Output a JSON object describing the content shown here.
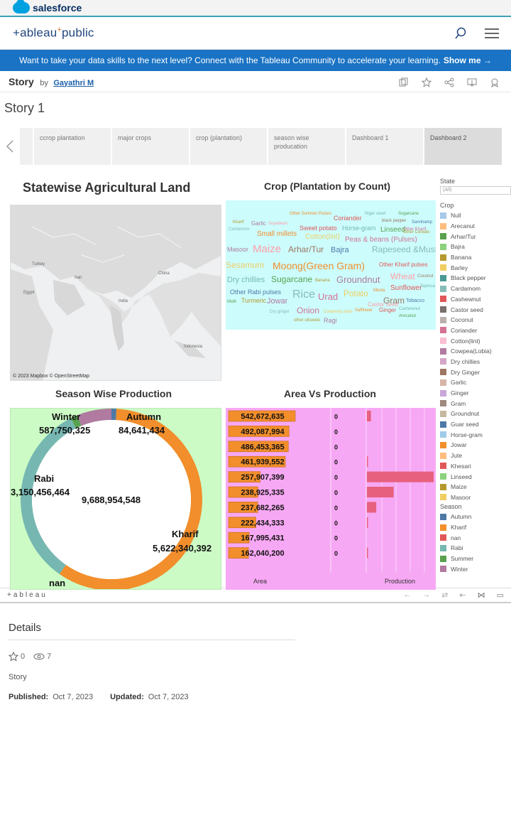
{
  "salesforce": {
    "brand": "salesforce"
  },
  "header": {
    "logo_main": "+ableau",
    "logo_sep": "+",
    "logo_public": "public"
  },
  "banner": {
    "text": "Want to take your data skills to the next level? Connect with the Tableau Community to accelerate your learning.",
    "link": "Show me →"
  },
  "story": {
    "title": "Story",
    "by": "by",
    "author": "Gayathri M",
    "heading": "Story 1"
  },
  "nav": {
    "points": [
      {
        "label": "ccrop plantation"
      },
      {
        "label": "major crops"
      },
      {
        "label": "crop (plantation)"
      },
      {
        "label": "season wise producation"
      },
      {
        "label": "Dashboard 1"
      },
      {
        "label": "Dashboard 2"
      }
    ]
  },
  "dashboard": {
    "map_title": "Statewise Agricultural Land",
    "map_credit": "© 2023 Mapbox © OpenStreetMap",
    "map_labels": [
      "Turkey",
      "Iran",
      "Egypt",
      "China",
      "India",
      "Indonesia"
    ],
    "cloud_title": "Crop (Plantation by Count)",
    "donut_title": "Season Wise Production",
    "bar_title": "Area Vs Production"
  },
  "wordcloud": {
    "words": [
      "Other Summer Pulses",
      "Coriander",
      "Niger seed",
      "Sugarcane",
      "Kharif",
      "Garlic",
      "Soyabean",
      "black pepper",
      "Sannhamp",
      "Cardamom",
      "Other Kharif",
      "Cotton(lint)",
      "Small millets",
      "Sweet potato",
      "Horse-gram",
      "Linseed",
      "Other Cereals",
      "Masoor",
      "Maize",
      "Arhar/Tur",
      "Bajra",
      "Rapeseed &Mustard",
      "Peas & beans (Pulses)",
      "Sesamum",
      "Moong(Green Gram)",
      "Other Kharif pulses",
      "Dry chillies",
      "Sugarcane",
      "Banana",
      "Groundnut",
      "Wheat",
      "Coconut",
      "Other Rabi pulses",
      "Rice",
      "Urad",
      "Potato",
      "Mesta",
      "Sunflower",
      "Tapioca",
      "Moth",
      "Turmeric",
      "Jowar",
      "Castor seed",
      "Gram",
      "Tobacco",
      "Dry ginger",
      "Onion",
      "Cowpea(Lobia)",
      "Safflower",
      "Ginger",
      "Cashewnut",
      "Arecanut",
      "other oilseeds",
      "Ragi"
    ]
  },
  "chart_data": [
    {
      "type": "pie",
      "title": "Season Wise Production",
      "center_label": "9,688,954,548",
      "slices": [
        {
          "season": "Autumn",
          "label": "84,641,434",
          "value": 84641434,
          "color": "#4e79a7"
        },
        {
          "season": "Kharif",
          "label": "5,622,340,392",
          "value": 5622340392,
          "color": "#f28e2b"
        },
        {
          "season": "nan",
          "label": "",
          "value": 0,
          "color": "#e15759"
        },
        {
          "season": "Rabi",
          "label": "3,150,456,464",
          "value": 3150456464,
          "color": "#76b7b2"
        },
        {
          "season": "Summer",
          "label": "",
          "value": 118000000,
          "color": "#59a14f"
        },
        {
          "season": "Winter",
          "label": "587,750,325",
          "value": 587750325,
          "color": "#b07aa1"
        }
      ]
    },
    {
      "type": "bar",
      "title": "Area Vs Production",
      "area_labels": [
        "542,672,635",
        "492,087,994",
        "486,453,365",
        "461,939,552",
        "257,907,399",
        "238,925,335",
        "237,682,265",
        "222,434,333",
        "167,995,431",
        "162,040,200"
      ],
      "area_values": [
        542672635,
        492087994,
        486453365,
        461939552,
        257907399,
        238925335,
        237682265,
        222434333,
        167995431,
        162040200
      ],
      "mid_labels": [
        "0",
        "0",
        "0",
        "0",
        "0",
        "0",
        "0",
        "0",
        "0",
        "0"
      ],
      "production_values": [
        6,
        0,
        0,
        1,
        100,
        40,
        14,
        1,
        0,
        1
      ],
      "xlabels": {
        "area": "Area",
        "production": "Production"
      }
    }
  ],
  "legend": {
    "state_title": "State",
    "state_value": "(All)",
    "crop_title": "Crop",
    "crops": [
      {
        "name": "Null",
        "color": "#a9c9e8"
      },
      {
        "name": "Arecanut",
        "color": "#ffbe7d"
      },
      {
        "name": "Arhar/Tur",
        "color": "#59a14f"
      },
      {
        "name": "Bajra",
        "color": "#8cd17d"
      },
      {
        "name": "Banana",
        "color": "#b6992d"
      },
      {
        "name": "Barley",
        "color": "#f1ce63"
      },
      {
        "name": "Black pepper",
        "color": "#499894"
      },
      {
        "name": "Cardamom",
        "color": "#86bcb6"
      },
      {
        "name": "Cashewnut",
        "color": "#e15759"
      },
      {
        "name": "Castor seed",
        "color": "#79706e"
      },
      {
        "name": "Coconut",
        "color": "#bab0ac"
      },
      {
        "name": "Coriander",
        "color": "#d37295"
      },
      {
        "name": "Cotton(lint)",
        "color": "#fabfd2"
      },
      {
        "name": "Cowpea(Lobia)",
        "color": "#b07aa1"
      },
      {
        "name": "Dry chillies",
        "color": "#d4a6c8"
      },
      {
        "name": "Dry Ginger",
        "color": "#9d7660"
      },
      {
        "name": "Garlic",
        "color": "#d7b5a6"
      },
      {
        "name": "Ginger",
        "color": "#c9a5d8"
      },
      {
        "name": "Gram",
        "color": "#a0887e"
      },
      {
        "name": "Groundnut",
        "color": "#c5b89e"
      },
      {
        "name": "Guar seed",
        "color": "#4e79a7"
      },
      {
        "name": "Horse-gram",
        "color": "#a0cbe8"
      },
      {
        "name": "Jowar",
        "color": "#f28e2b"
      },
      {
        "name": "Jute",
        "color": "#ffbe7d"
      },
      {
        "name": "Khesari",
        "color": "#e15759"
      },
      {
        "name": "Linseed",
        "color": "#8cd17d"
      },
      {
        "name": "Maize",
        "color": "#b6992d"
      },
      {
        "name": "Masoor",
        "color": "#f1ce63"
      }
    ],
    "season_title": "Season",
    "seasons": [
      {
        "name": "Autumn",
        "color": "#4e79a7"
      },
      {
        "name": "Kharif",
        "color": "#f28e2b"
      },
      {
        "name": "nan",
        "color": "#e15759"
      },
      {
        "name": "Rabi",
        "color": "#76b7b2"
      },
      {
        "name": "Summer",
        "color": "#59a14f"
      },
      {
        "name": "Winter",
        "color": "#b07aa1"
      }
    ]
  },
  "toolbar": {
    "logo": "+ableau"
  },
  "details": {
    "heading": "Details",
    "favorites": "0",
    "views": "7",
    "type": "Story",
    "published_label": "Published:",
    "published": "Oct 7, 2023",
    "updated_label": "Updated:",
    "updated": "Oct 7, 2023"
  }
}
